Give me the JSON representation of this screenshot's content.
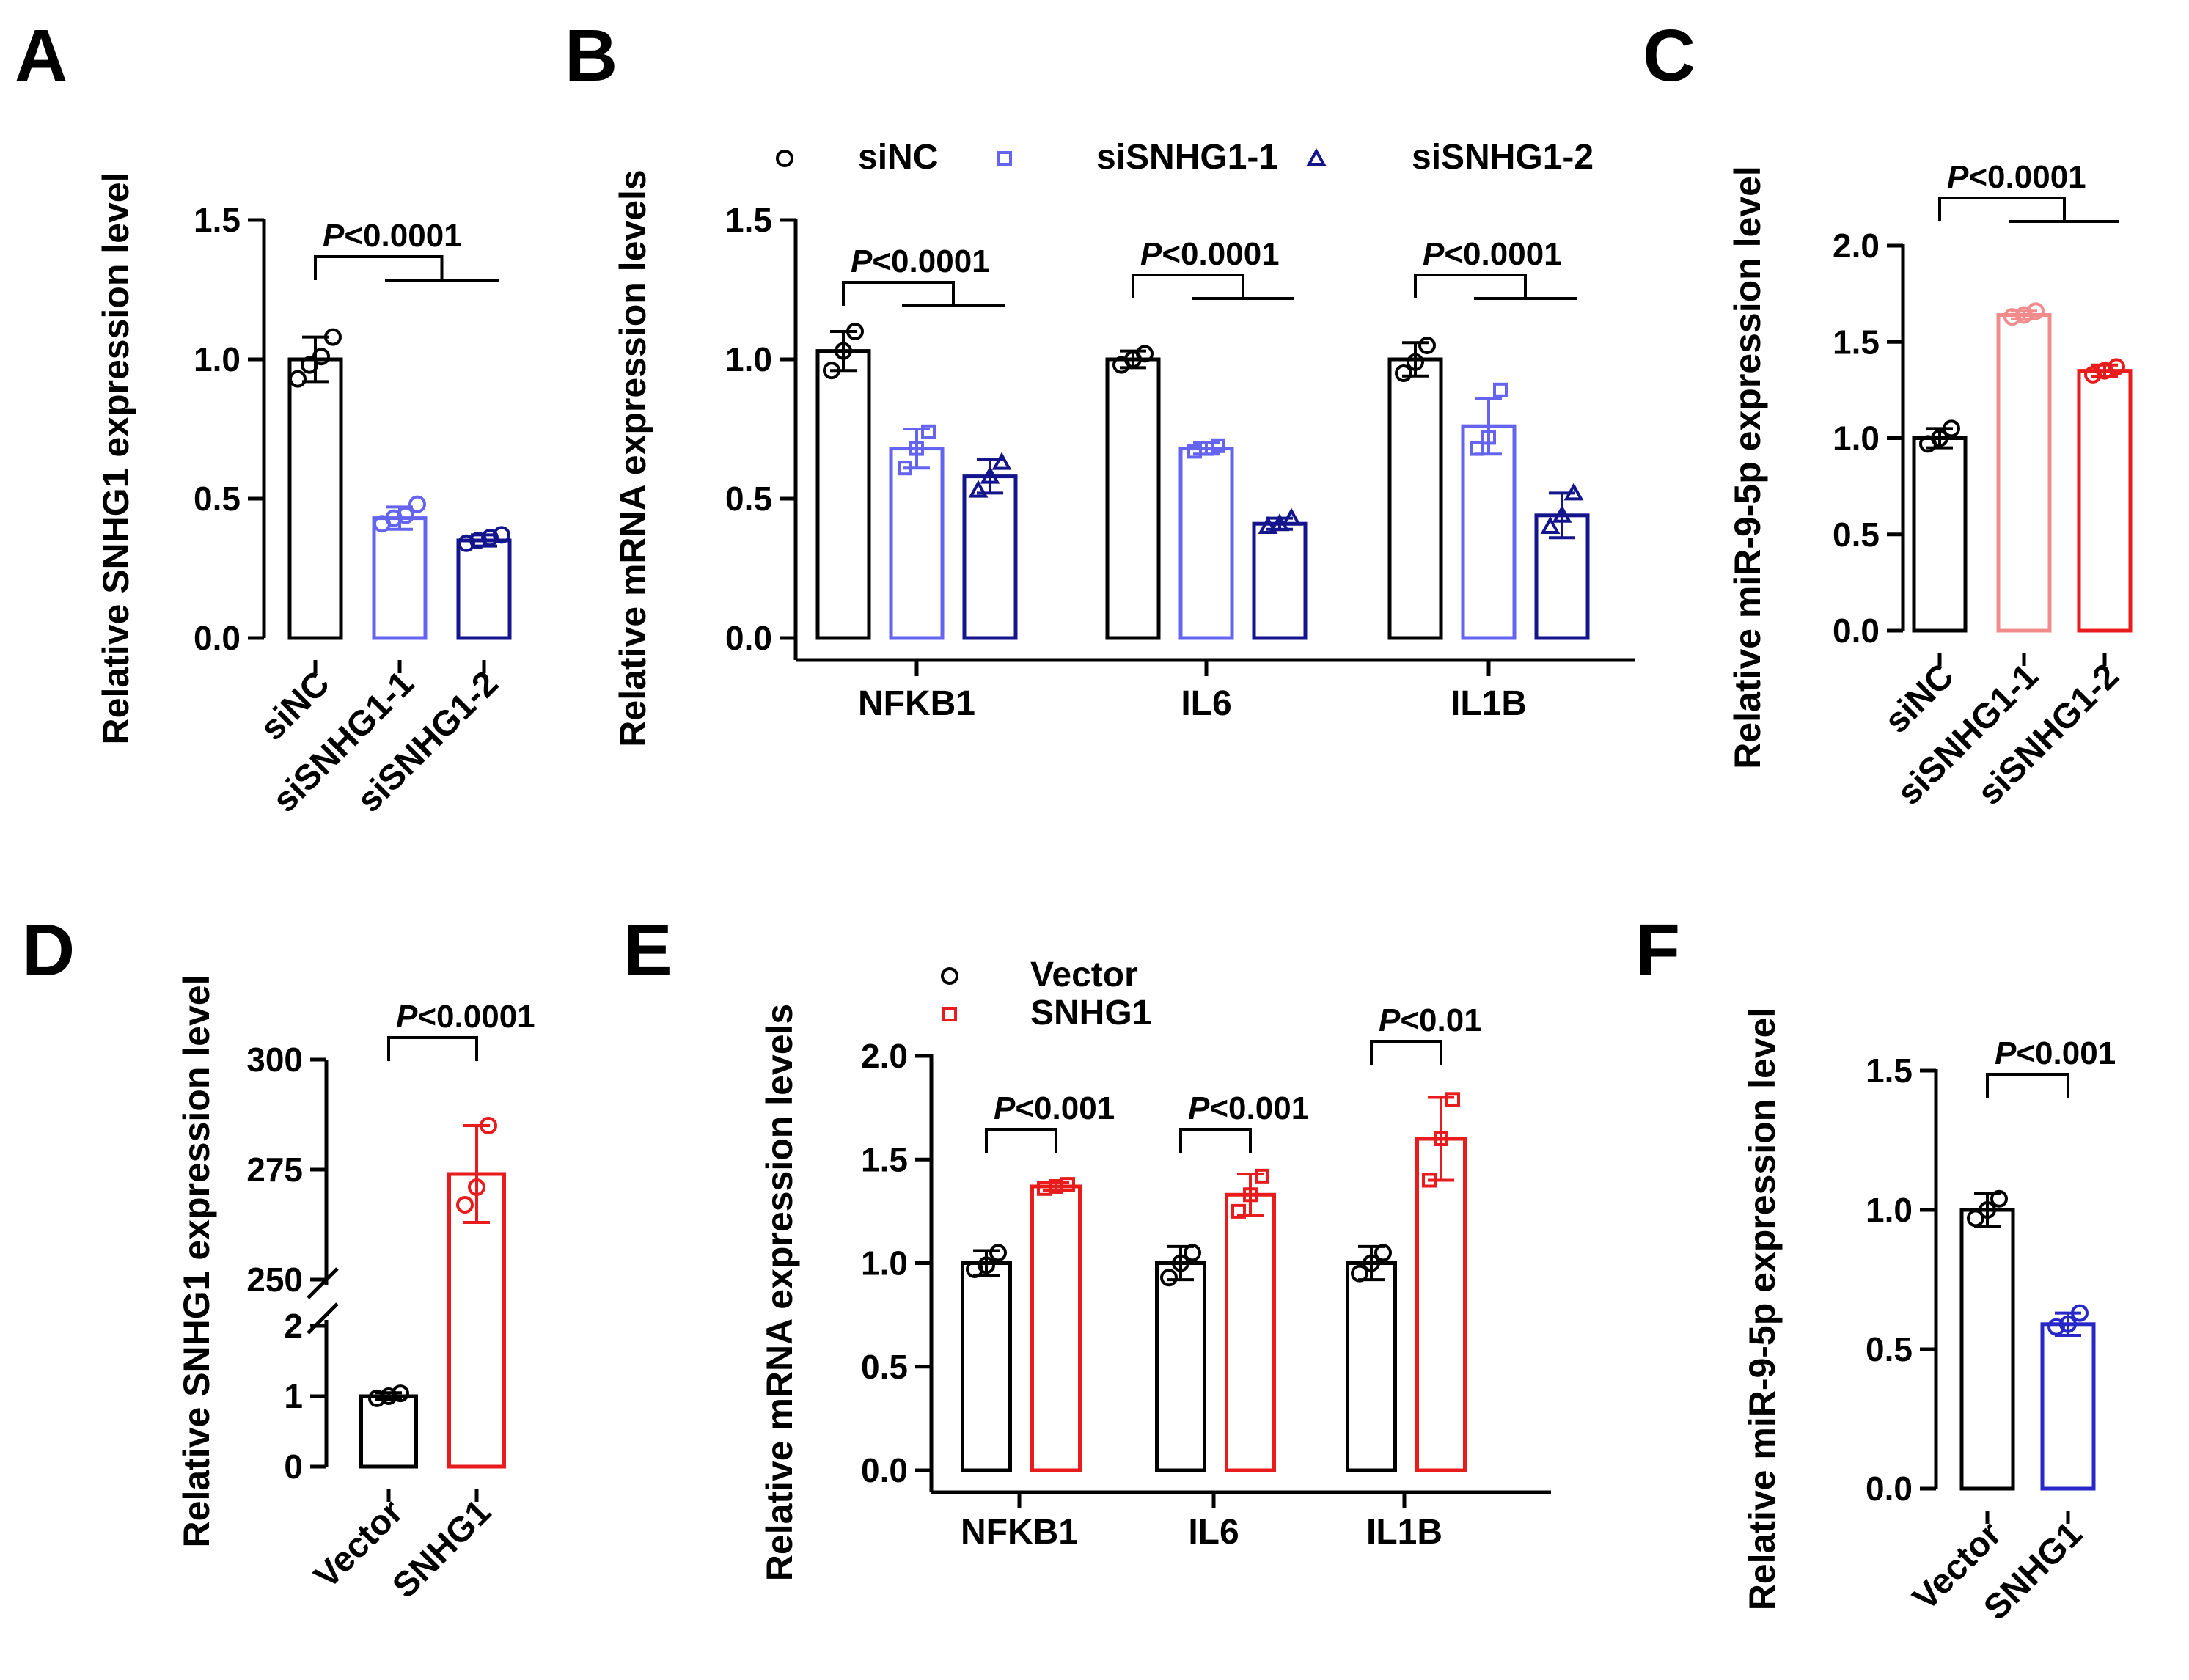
{
  "colors": {
    "black": "#000000",
    "blue_light": "#6464f0",
    "blue_dark": "#14148c",
    "pink": "#f08c8c",
    "red": "#e81c1c",
    "blue_mid": "#2828c8"
  },
  "panel_labels": [
    "A",
    "B",
    "C",
    "D",
    "E",
    "F"
  ],
  "chart_data": [
    {
      "id": "A",
      "type": "bar",
      "ylabel": "Relative SNHG1 expression level",
      "ylim": [
        0,
        1.5
      ],
      "yticks": [
        0,
        0.5,
        1.0,
        1.5
      ],
      "ytick_labels": [
        "0.0",
        "0.5",
        "1.0",
        "1.5"
      ],
      "categories": [
        "siNC",
        "siSNHG1-1",
        "siSNHG1-2"
      ],
      "values": [
        1.0,
        0.43,
        0.35
      ],
      "errors": [
        0.08,
        0.04,
        0.02
      ],
      "bar_colors": [
        "#000000",
        "#6464f0",
        "#14148c"
      ],
      "point_shape": "circle",
      "points": [
        [
          0.93,
          0.98,
          1.01,
          1.08
        ],
        [
          0.41,
          0.43,
          0.44,
          0.48
        ],
        [
          0.34,
          0.35,
          0.36,
          0.37
        ]
      ],
      "stats": [
        {
          "label": "<0.0001",
          "from": 0,
          "to": [
            1,
            2
          ]
        }
      ]
    },
    {
      "id": "B",
      "type": "bar",
      "ylabel": "Relative mRNA expression levels",
      "ylim": [
        0,
        1.5
      ],
      "yticks": [
        0,
        0.5,
        1.0,
        1.5
      ],
      "ytick_labels": [
        "0.0",
        "0.5",
        "1.0",
        "1.5"
      ],
      "categories": [
        "NFKB1",
        "IL6",
        "IL1B"
      ],
      "series": [
        {
          "name": "siNC",
          "color": "#000000",
          "shape": "circle",
          "values": [
            1.03,
            1.0,
            1.0
          ],
          "errors": [
            0.07,
            0.03,
            0.06
          ],
          "points": [
            [
              0.96,
              1.03,
              1.1
            ],
            [
              0.98,
              1.0,
              1.02
            ],
            [
              0.95,
              0.99,
              1.05
            ]
          ]
        },
        {
          "name": "siSNHG1-1",
          "color": "#6464f0",
          "shape": "square",
          "values": [
            0.68,
            0.68,
            0.76
          ],
          "errors": [
            0.07,
            0.02,
            0.1
          ],
          "points": [
            [
              0.61,
              0.68,
              0.74
            ],
            [
              0.67,
              0.68,
              0.69
            ],
            [
              0.68,
              0.72,
              0.89
            ]
          ]
        },
        {
          "name": "siSNHG1-2",
          "color": "#14148c",
          "shape": "triangle",
          "values": [
            0.58,
            0.41,
            0.44
          ],
          "errors": [
            0.06,
            0.02,
            0.08
          ],
          "points": [
            [
              0.53,
              0.58,
              0.63
            ],
            [
              0.4,
              0.41,
              0.43
            ],
            [
              0.4,
              0.44,
              0.52
            ]
          ]
        }
      ],
      "stats": [
        {
          "label": "<0.0001",
          "cat": 0,
          "from": 0,
          "to": [
            1,
            2
          ]
        },
        {
          "label": "<0.0001",
          "cat": 1,
          "from": 0,
          "to": [
            1,
            2
          ]
        },
        {
          "label": "<0.0001",
          "cat": 2,
          "from": 0,
          "to": [
            1,
            2
          ]
        }
      ],
      "legend_position": "top"
    },
    {
      "id": "C",
      "type": "bar",
      "ylabel": "Relative miR-9-5p expression level",
      "ylim": [
        0,
        2.0
      ],
      "yticks": [
        0,
        0.5,
        1.0,
        1.5,
        2.0
      ],
      "ytick_labels": [
        "0.0",
        "0.5",
        "1.0",
        "1.5",
        "2.0"
      ],
      "categories": [
        "siNC",
        "siSNHG1-1",
        "siSNHG1-2"
      ],
      "values": [
        1.0,
        1.64,
        1.35
      ],
      "errors": [
        0.05,
        0.02,
        0.03
      ],
      "bar_colors": [
        "#000000",
        "#f08c8c",
        "#e81c1c"
      ],
      "point_shape": "circle",
      "points": [
        [
          0.97,
          1.0,
          1.05
        ],
        [
          1.63,
          1.64,
          1.66
        ],
        [
          1.33,
          1.35,
          1.37
        ]
      ],
      "stats": [
        {
          "label": "<0.0001",
          "from": 0,
          "to": [
            1,
            2
          ]
        }
      ]
    },
    {
      "id": "D",
      "type": "bar",
      "ylabel": "Relative SNHG1 expression level",
      "broken_axis": true,
      "lower_ylim": [
        0,
        2
      ],
      "upper_ylim": [
        250,
        300
      ],
      "yticks": [
        0,
        1,
        2,
        250,
        275,
        300
      ],
      "ytick_labels": [
        "0",
        "1",
        "2",
        "250",
        "275",
        "300"
      ],
      "categories": [
        "Vector",
        "SNHG1"
      ],
      "values": [
        1.0,
        274
      ],
      "errors": [
        0.05,
        11
      ],
      "bar_colors": [
        "#000000",
        "#e81c1c"
      ],
      "point_shape": "circle",
      "points": [
        [
          0.97,
          1.0,
          1.04
        ],
        [
          267,
          271,
          285
        ]
      ],
      "stats": [
        {
          "label": "<0.0001",
          "from": 0,
          "to": [
            1
          ]
        }
      ]
    },
    {
      "id": "E",
      "type": "bar",
      "ylabel": "Relative mRNA expression levels",
      "ylim": [
        0,
        2.0
      ],
      "yticks": [
        0,
        0.5,
        1.0,
        1.5,
        2.0
      ],
      "ytick_labels": [
        "0.0",
        "0.5",
        "1.0",
        "1.5",
        "2.0"
      ],
      "categories": [
        "NFKB1",
        "IL6",
        "IL1B"
      ],
      "series": [
        {
          "name": "Vector",
          "color": "#000000",
          "shape": "circle",
          "values": [
            1.0,
            1.0,
            1.0
          ],
          "errors": [
            0.06,
            0.08,
            0.08
          ],
          "points": [
            [
              0.97,
              0.99,
              1.05
            ],
            [
              0.93,
              1.0,
              1.05
            ],
            [
              0.95,
              1.0,
              1.05
            ]
          ]
        },
        {
          "name": "SNHG1",
          "color": "#e81c1c",
          "shape": "square",
          "values": [
            1.37,
            1.33,
            1.6
          ],
          "errors": [
            0.02,
            0.1,
            0.2
          ],
          "points": [
            [
              1.36,
              1.37,
              1.38
            ],
            [
              1.25,
              1.33,
              1.42
            ],
            [
              1.4,
              1.6,
              1.79
            ]
          ]
        }
      ],
      "stats": [
        {
          "label": "<0.001",
          "cat": 0,
          "from": 0,
          "to": [
            1
          ]
        },
        {
          "label": "<0.001",
          "cat": 1,
          "from": 0,
          "to": [
            1
          ]
        },
        {
          "label": "<0.01",
          "cat": 2,
          "from": 0,
          "to": [
            1
          ]
        }
      ],
      "legend_position": "top-left"
    },
    {
      "id": "F",
      "type": "bar",
      "ylabel": "Relative miR-9-5p expression level",
      "ylim": [
        0,
        1.5
      ],
      "yticks": [
        0,
        0.5,
        1.0,
        1.5
      ],
      "ytick_labels": [
        "0.0",
        "0.5",
        "1.0",
        "1.5"
      ],
      "categories": [
        "Vector",
        "SNHG1"
      ],
      "values": [
        1.0,
        0.59
      ],
      "errors": [
        0.06,
        0.04
      ],
      "bar_colors": [
        "#000000",
        "#2828c8"
      ],
      "point_shape": "circle",
      "points": [
        [
          0.97,
          1.0,
          1.04
        ],
        [
          0.58,
          0.59,
          0.63
        ]
      ],
      "stats": [
        {
          "label": "<0.001",
          "from": 0,
          "to": [
            1
          ]
        }
      ]
    }
  ]
}
